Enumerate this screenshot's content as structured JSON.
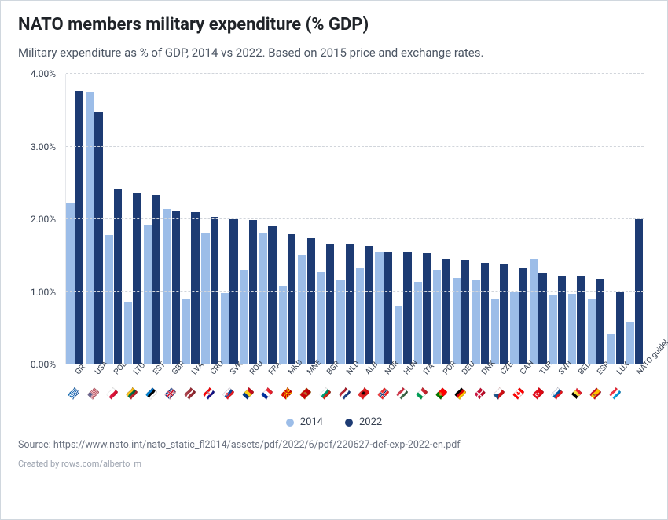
{
  "title": "NATO members military expenditure (% GDP)",
  "subtitle": "Military expenditure as % of GDP, 2014 vs 2022. Based on 2015 price and exchange rates.",
  "source": "Source: https://www.nato.int/nato_static_fl2014/assets/pdf/2022/6/pdf/220627-def-exp-2022-en.pdf",
  "credit": "Created by rows.com/alberto_m",
  "chart": {
    "type": "bar",
    "y_max": 4.0,
    "y_ticks": [
      0.0,
      1.0,
      2.0,
      3.0,
      4.0
    ],
    "y_tick_labels": [
      "0.00%",
      "1.00%",
      "2.00%",
      "3.00%",
      "4.00%"
    ],
    "series": [
      {
        "name": "2014",
        "color": "#9cbde8"
      },
      {
        "name": "2022",
        "color": "#1d3b73"
      }
    ],
    "background_color": "#ffffff",
    "grid_color": "#d1d5db",
    "grid_dash": true,
    "tick_fontsize": 12,
    "xlabel_fontsize": 10,
    "xlabel_rotation_deg": -48,
    "categories": [
      {
        "code": "GR",
        "flag": "🇬🇷",
        "v2014": 2.22,
        "v2022": 3.76
      },
      {
        "code": "USA",
        "flag": "🇺🇸",
        "v2014": 3.75,
        "v2022": 3.47
      },
      {
        "code": "POL",
        "flag": "🇵🇱",
        "v2014": 1.78,
        "v2022": 2.42
      },
      {
        "code": "LTU",
        "flag": "🇱🇹",
        "v2014": 0.85,
        "v2022": 2.36
      },
      {
        "code": "EST",
        "flag": "🇪🇪",
        "v2014": 1.92,
        "v2022": 2.34
      },
      {
        "code": "GBR",
        "flag": "🇬🇧",
        "v2014": 2.14,
        "v2022": 2.12
      },
      {
        "code": "LVA",
        "flag": "🇱🇻",
        "v2014": 0.9,
        "v2022": 2.1
      },
      {
        "code": "CRO",
        "flag": "🇭🇷",
        "v2014": 1.82,
        "v2022": 2.03
      },
      {
        "code": "SVK",
        "flag": "🇸🇰",
        "v2014": 0.98,
        "v2022": 2.0
      },
      {
        "code": "ROU",
        "flag": "🇷🇴",
        "v2014": 1.3,
        "v2022": 1.99
      },
      {
        "code": "FRA",
        "flag": "🇫🇷",
        "v2014": 1.82,
        "v2022": 1.9
      },
      {
        "code": "MKD",
        "flag": "🇲🇰",
        "v2014": 1.08,
        "v2022": 1.8
      },
      {
        "code": "MNE",
        "flag": "🇲🇪",
        "v2014": 1.5,
        "v2022": 1.74
      },
      {
        "code": "BGR",
        "flag": "🇧🇬",
        "v2014": 1.28,
        "v2022": 1.67
      },
      {
        "code": "NLD",
        "flag": "🇳🇱",
        "v2014": 1.17,
        "v2022": 1.65
      },
      {
        "code": "ALB",
        "flag": "🇦🇱",
        "v2014": 1.33,
        "v2022": 1.63
      },
      {
        "code": "NOR",
        "flag": "🇳🇴",
        "v2014": 1.55,
        "v2022": 1.55
      },
      {
        "code": "HUN",
        "flag": "🇭🇺",
        "v2014": 0.8,
        "v2022": 1.55
      },
      {
        "code": "ITA",
        "flag": "🇮🇹",
        "v2014": 1.14,
        "v2022": 1.54
      },
      {
        "code": "POR",
        "flag": "🇵🇹",
        "v2014": 1.3,
        "v2022": 1.45
      },
      {
        "code": "DEU",
        "flag": "🇩🇪",
        "v2014": 1.19,
        "v2022": 1.44
      },
      {
        "code": "DNK",
        "flag": "🇩🇰",
        "v2014": 1.17,
        "v2022": 1.4
      },
      {
        "code": "CZE",
        "flag": "🇨🇿",
        "v2014": 0.9,
        "v2022": 1.38
      },
      {
        "code": "CAN",
        "flag": "🇨🇦",
        "v2014": 1.0,
        "v2022": 1.33
      },
      {
        "code": "TUR",
        "flag": "🇹🇷",
        "v2014": 1.45,
        "v2022": 1.27
      },
      {
        "code": "SVN",
        "flag": "🇸🇮",
        "v2014": 0.95,
        "v2022": 1.22
      },
      {
        "code": "BEL",
        "flag": "🇧🇪",
        "v2014": 0.97,
        "v2022": 1.21
      },
      {
        "code": "ESP",
        "flag": "🇪🇸",
        "v2014": 0.9,
        "v2022": 1.18
      },
      {
        "code": "LUX",
        "flag": "🇱🇺",
        "v2014": 0.42,
        "v2022": 1.0
      },
      {
        "code": "NATO guidel…",
        "flag": "",
        "v2014": 0.58,
        "v2022": 2.0
      }
    ]
  },
  "legend": {
    "items": [
      {
        "label": "2014",
        "color": "#9cbde8"
      },
      {
        "label": "2022",
        "color": "#1d3b73"
      }
    ]
  }
}
